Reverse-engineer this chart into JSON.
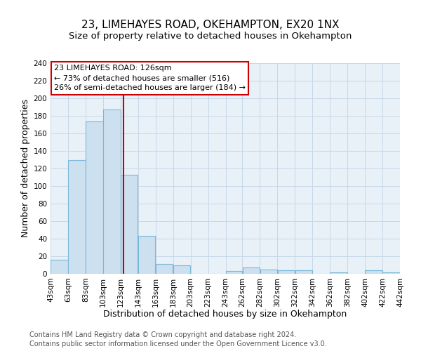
{
  "title": "23, LIMEHAYES ROAD, OKEHAMPTON, EX20 1NX",
  "subtitle": "Size of property relative to detached houses in Okehampton",
  "xlabel": "Distribution of detached houses by size in Okehampton",
  "ylabel": "Number of detached properties",
  "footer_lines": [
    "Contains HM Land Registry data © Crown copyright and database right 2024.",
    "Contains public sector information licensed under the Open Government Licence v3.0."
  ],
  "bin_edges": [
    43,
    63,
    83,
    103,
    123,
    143,
    163,
    183,
    203,
    223,
    243,
    262,
    282,
    302,
    322,
    342,
    362,
    382,
    402,
    422,
    442
  ],
  "bar_heights": [
    16,
    130,
    174,
    187,
    113,
    43,
    11,
    10,
    0,
    0,
    3,
    7,
    5,
    4,
    4,
    0,
    2,
    0,
    4,
    2
  ],
  "bar_color": "#cce0f0",
  "bar_edge_color": "#7ab8d8",
  "red_line_x": 126,
  "annotation_title": "23 LIMEHAYES ROAD: 126sqm",
  "annotation_line1": "← 73% of detached houses are smaller (516)",
  "annotation_line2": "26% of semi-detached houses are larger (184) →",
  "annotation_box_facecolor": "white",
  "annotation_box_edgecolor": "#cc0000",
  "red_line_color": "#cc0000",
  "ylim": [
    0,
    240
  ],
  "yticks": [
    0,
    20,
    40,
    60,
    80,
    100,
    120,
    140,
    160,
    180,
    200,
    220,
    240
  ],
  "tick_labels": [
    "43sqm",
    "63sqm",
    "83sqm",
    "103sqm",
    "123sqm",
    "143sqm",
    "163sqm",
    "183sqm",
    "203sqm",
    "223sqm",
    "243sqm",
    "262sqm",
    "282sqm",
    "302sqm",
    "322sqm",
    "342sqm",
    "362sqm",
    "382sqm",
    "402sqm",
    "422sqm",
    "442sqm"
  ],
  "grid_color": "#c8d8e8",
  "background_color": "#e8f0f8",
  "title_fontsize": 11,
  "subtitle_fontsize": 9.5,
  "axis_label_fontsize": 9,
  "tick_fontsize": 7.5,
  "footer_fontsize": 7,
  "annot_fontsize": 8
}
